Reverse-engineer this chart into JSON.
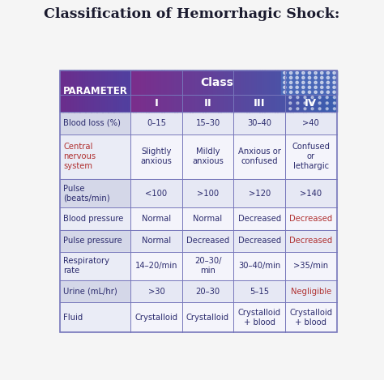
{
  "title": "Classification of Hemorrhagic Shock:",
  "title_color": "#1a1a2e",
  "title_fontsize": 12.5,
  "col_header_top": "Class",
  "col_headers": [
    "I",
    "II",
    "III",
    "IV"
  ],
  "row_header": "PARAMETER",
  "rows": [
    {
      "label": "Blood loss (%)",
      "values": [
        "0–15",
        "15–30",
        "30–40",
        ">40"
      ],
      "label_color": "#2c2c6e",
      "value_colors": [
        "#2c2c6e",
        "#2c2c6e",
        "#2c2c6e",
        "#2c2c6e"
      ],
      "label_bg": "#d4d7e8",
      "value_bgs": [
        "#e6e8f4",
        "#e6e8f4",
        "#e6e8f4",
        "#e6e8f4"
      ]
    },
    {
      "label": "Central\nnervous\nsystem",
      "values": [
        "Slightly\nanxious",
        "Mildly\nanxious",
        "Anxious or\nconfused",
        "Confused\nor\nlethargic"
      ],
      "label_color": "#b03030",
      "value_colors": [
        "#2c2c6e",
        "#2c2c6e",
        "#2c2c6e",
        "#2c2c6e"
      ],
      "label_bg": "#eaecf6",
      "value_bgs": [
        "#f4f4fb",
        "#f4f4fb",
        "#f4f4fb",
        "#f4f4fb"
      ]
    },
    {
      "label": "Pulse\n(beats/min)",
      "values": [
        "<100",
        ">100",
        ">120",
        ">140"
      ],
      "label_color": "#2c2c6e",
      "value_colors": [
        "#2c2c6e",
        "#2c2c6e",
        "#2c2c6e",
        "#2c2c6e"
      ],
      "label_bg": "#d4d7e8",
      "value_bgs": [
        "#e6e8f4",
        "#e6e8f4",
        "#e6e8f4",
        "#e6e8f4"
      ]
    },
    {
      "label": "Blood pressure",
      "values": [
        "Normal",
        "Normal",
        "Decreased",
        "Decreased"
      ],
      "label_color": "#2c2c6e",
      "value_colors": [
        "#2c2c6e",
        "#2c2c6e",
        "#2c2c6e",
        "#b03030"
      ],
      "label_bg": "#eaecf6",
      "value_bgs": [
        "#f4f4fb",
        "#f4f4fb",
        "#f4f4fb",
        "#f4f4fb"
      ]
    },
    {
      "label": "Pulse pressure",
      "values": [
        "Normal",
        "Decreased",
        "Decreased",
        "Decreased"
      ],
      "label_color": "#2c2c6e",
      "value_colors": [
        "#2c2c6e",
        "#2c2c6e",
        "#2c2c6e",
        "#b03030"
      ],
      "label_bg": "#d4d7e8",
      "value_bgs": [
        "#e6e8f4",
        "#e6e8f4",
        "#e6e8f4",
        "#e6e8f4"
      ]
    },
    {
      "label": "Respiratory\nrate",
      "values": [
        "14–20/min",
        "20–30/\nmin",
        "30–40/min",
        ">35/min"
      ],
      "label_color": "#2c2c6e",
      "value_colors": [
        "#2c2c6e",
        "#2c2c6e",
        "#2c2c6e",
        "#2c2c6e"
      ],
      "label_bg": "#eaecf6",
      "value_bgs": [
        "#f4f4fb",
        "#f4f4fb",
        "#f4f4fb",
        "#f4f4fb"
      ]
    },
    {
      "label": "Urine (mL/hr)",
      "values": [
        ">30",
        "20–30",
        "5–15",
        "Negligible"
      ],
      "label_color": "#2c2c6e",
      "value_colors": [
        "#2c2c6e",
        "#2c2c6e",
        "#2c2c6e",
        "#b03030"
      ],
      "label_bg": "#d4d7e8",
      "value_bgs": [
        "#e6e8f4",
        "#e6e8f4",
        "#e6e8f4",
        "#e6e8f4"
      ]
    },
    {
      "label": "Fluid",
      "values": [
        "Crystalloid",
        "Crystalloid",
        "Crystalloid\n+ blood",
        "Crystalloid\n+ blood"
      ],
      "label_color": "#2c2c6e",
      "value_colors": [
        "#2c2c6e",
        "#2c2c6e",
        "#2c2c6e",
        "#2c2c6e"
      ],
      "label_bg": "#eaecf6",
      "value_bgs": [
        "#f4f4fb",
        "#f4f4fb",
        "#f4f4fb",
        "#f4f4fb"
      ]
    }
  ],
  "header_gradient_left": "#7b2d8b",
  "header_gradient_right": "#3a5fb0",
  "header_text_color": "#ffffff",
  "param_bg_left": "#6b2d8c",
  "param_bg_right": "#5040a0",
  "outer_border_color": "#7777bb",
  "background_color": "#f5f5f5",
  "outer_bg": "#f0f0f0"
}
